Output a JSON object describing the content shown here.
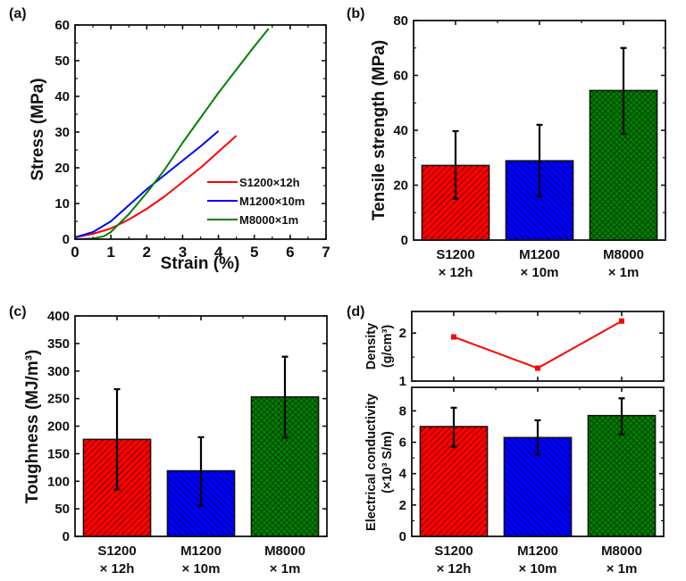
{
  "colors": {
    "red": "#ff0000",
    "blue": "#0000ff",
    "green": "#008000",
    "axis": "#111111",
    "errorbar": "#000000"
  },
  "chart_data": [
    {
      "id": "a",
      "panel_label": "(a)",
      "type": "line",
      "title": "",
      "xlabel": "Strain (%)",
      "ylabel": "Stress (MPa)",
      "xlim": [
        0,
        7
      ],
      "ylim": [
        0,
        60
      ],
      "xticks": [
        0,
        1,
        2,
        3,
        4,
        5,
        6,
        7
      ],
      "yticks": [
        0,
        10,
        20,
        30,
        40,
        50,
        60
      ],
      "grid": false,
      "legend_position": "bottom-right",
      "series": [
        {
          "name": "S1200×12h",
          "color": "#ff0000",
          "x": [
            0,
            0.5,
            1.0,
            1.5,
            2.0,
            2.5,
            3.0,
            3.5,
            4.0,
            4.5
          ],
          "y": [
            0.5,
            1.5,
            3.0,
            5.5,
            8.5,
            12.0,
            16.0,
            20.0,
            24.5,
            29.0
          ]
        },
        {
          "name": "M1200×10m",
          "color": "#0000ff",
          "x": [
            0,
            0.5,
            1.0,
            1.5,
            2.0,
            2.5,
            3.0,
            3.5,
            4.0
          ],
          "y": [
            0.5,
            2.0,
            5.0,
            9.5,
            14.0,
            18.0,
            22.0,
            26.0,
            30.3
          ]
        },
        {
          "name": "M8000×1m",
          "color": "#008000",
          "x": [
            0,
            0.5,
            0.8,
            1.0,
            1.5,
            2.0,
            2.5,
            3.0,
            3.5,
            4.0,
            4.5,
            5.0,
            5.4
          ],
          "y": [
            0,
            0.2,
            0.8,
            2.0,
            7.0,
            13.0,
            19.5,
            27.0,
            34.0,
            41.0,
            47.5,
            54.0,
            59.0
          ]
        }
      ]
    },
    {
      "id": "b",
      "panel_label": "(b)",
      "type": "bar",
      "title": "",
      "xlabel": "",
      "ylabel": "Tensile strength (MPa)",
      "ylim": [
        0,
        80
      ],
      "yticks": [
        0,
        20,
        40,
        60,
        80
      ],
      "grid": false,
      "categories": [
        {
          "line1": "S1200",
          "line2": "× 12h"
        },
        {
          "line1": "M1200",
          "line2": "× 10m"
        },
        {
          "line1": "M8000",
          "line2": "× 1m"
        }
      ],
      "values": [
        27.2,
        28.9,
        54.5
      ],
      "error_low": [
        15.0,
        15.8,
        38.7
      ],
      "error_high": [
        39.7,
        42.0,
        70.0
      ],
      "bar_colors": [
        "#ff0000",
        "#0000ff",
        "#008000"
      ],
      "bar_patterns": [
        "diag-right",
        "diag-left",
        "crosshatch"
      ]
    },
    {
      "id": "c",
      "panel_label": "(c)",
      "type": "bar",
      "title": "",
      "xlabel": "",
      "ylabel": "Toughness (MJ/m³)",
      "ylim": [
        0,
        400
      ],
      "yticks": [
        0,
        50,
        100,
        150,
        200,
        250,
        300,
        350,
        400
      ],
      "grid": false,
      "categories": [
        {
          "line1": "S1200",
          "line2": "× 12h"
        },
        {
          "line1": "M1200",
          "line2": "× 10m"
        },
        {
          "line1": "M8000",
          "line2": "× 1m"
        }
      ],
      "values": [
        176,
        119,
        253
      ],
      "error_low": [
        85,
        56,
        179
      ],
      "error_high": [
        267,
        180,
        326
      ],
      "bar_colors": [
        "#ff0000",
        "#0000ff",
        "#008000"
      ],
      "bar_patterns": [
        "diag-right",
        "diag-left",
        "crosshatch"
      ]
    },
    {
      "id": "d_top",
      "panel_label": "(d)",
      "type": "line",
      "title": "",
      "xlabel": "",
      "ylabel_line1": "Density",
      "ylabel_line2": "(g/cm³)",
      "ylim": [
        1,
        2.45
      ],
      "yticks": [
        1,
        2
      ],
      "grid": false,
      "categories": [
        "S1200 × 12h",
        "M1200 × 10m",
        "M8000 × 1m"
      ],
      "series": [
        {
          "name": "Density",
          "color": "#ff0000",
          "marker": "square",
          "values": [
            1.92,
            1.27,
            2.25
          ]
        }
      ]
    },
    {
      "id": "d_bottom",
      "panel_label": "",
      "type": "bar",
      "title": "",
      "xlabel": "",
      "ylabel_line1": "Electrical conductivity",
      "ylabel_line2": "(×10³ S/m)",
      "ylim": [
        0,
        9.5
      ],
      "yticks": [
        0,
        2,
        4,
        6,
        8
      ],
      "grid": false,
      "categories": [
        {
          "line1": "S1200",
          "line2": "× 12h"
        },
        {
          "line1": "M1200",
          "line2": "× 10m"
        },
        {
          "line1": "M8000",
          "line2": "× 1m"
        }
      ],
      "values": [
        7.0,
        6.3,
        7.7
      ],
      "error_low": [
        5.7,
        5.2,
        6.5
      ],
      "error_high": [
        8.2,
        7.4,
        8.8
      ],
      "bar_colors": [
        "#ff0000",
        "#0000ff",
        "#008000"
      ],
      "bar_patterns": [
        "diag-right",
        "diag-left",
        "crosshatch"
      ]
    }
  ]
}
